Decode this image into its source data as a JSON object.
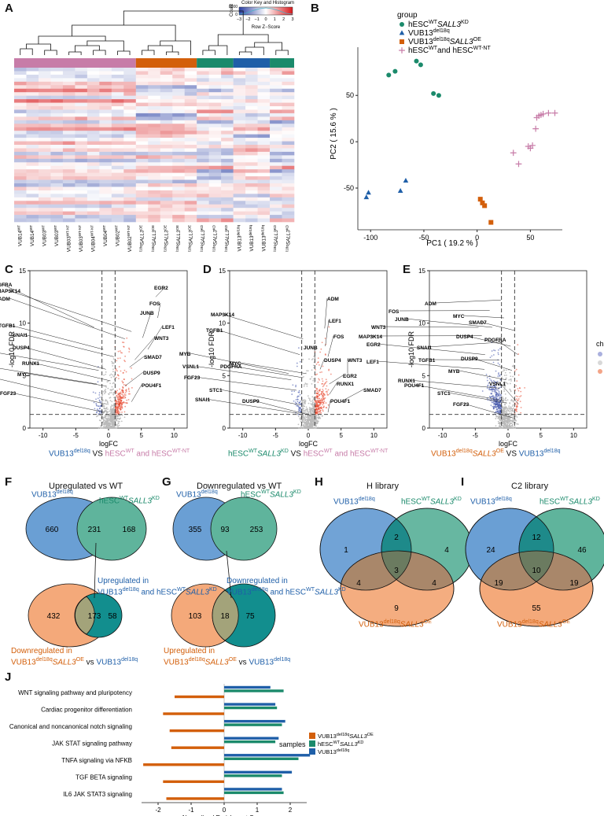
{
  "panels": {
    "A": "A",
    "B": "B",
    "C": "C",
    "D": "D",
    "E": "E",
    "F": "F",
    "G": "G",
    "H": "H",
    "I": "I",
    "J": "J"
  },
  "colors": {
    "green": "#1b8a6b",
    "blue": "#1f5fa8",
    "orange": "#d2691e",
    "pink": "#c77ca8",
    "venn_blue": "#6a9fd4",
    "venn_green": "#5fb49c",
    "venn_orange": "#f4a97a",
    "gray_overlap": "#a3a37a"
  },
  "heatmap": {
    "color_key_title": "Color Key and Histogram",
    "color_key_ylabel": "Count",
    "color_key_yticks": [
      "0",
      "8000"
    ],
    "color_key_ticks": [
      "−3",
      "−2",
      "−1",
      "0",
      "1",
      "2",
      "3"
    ],
    "color_key_xlabel": "Row Z−Score",
    "group_bar_colors": [
      "#c77ca8",
      "#d35f0b",
      "#1b8a6b",
      "#1f5fa8",
      "#1b8a6b"
    ],
    "col_labels": [
      {
        "base": "VUB14",
        "sup": "WT",
        "sub": "",
        "italic": ""
      },
      {
        "base": "VUB14",
        "sup": "WT",
        "sub": "",
        "italic": ""
      },
      {
        "base": "VUB03",
        "sup": "WT",
        "sub": "",
        "italic": ""
      },
      {
        "base": "VUB03",
        "sup": "WT",
        "sub": "",
        "italic": ""
      },
      {
        "base": "VUB03",
        "sup": "WT-NT",
        "sub": "",
        "italic": ""
      },
      {
        "base": "VUB03",
        "sup": "WT-NT",
        "sub": "",
        "italic": ""
      },
      {
        "base": "VUB04",
        "sup": "WT-NT",
        "sub": "",
        "italic": ""
      },
      {
        "base": "VUB04",
        "sup": "WT",
        "sub": "",
        "italic": ""
      },
      {
        "base": "VUB02",
        "sup": "WT",
        "sub": "",
        "italic": ""
      },
      {
        "base": "VUB02",
        "sup": "WT-NT",
        "sub": "",
        "italic": ""
      },
      {
        "base": "VUB13",
        "sup": "del18q",
        "sub": "SALL3",
        "italic": "OE"
      },
      {
        "base": "VUB13",
        "sup": "del18q",
        "sub": "SALL3",
        "italic": "OE"
      },
      {
        "base": "VUB13",
        "sup": "del18q",
        "sub": "SALL3",
        "italic": "OE"
      },
      {
        "base": "VUB13",
        "sup": "del18q",
        "sub": "SALL3",
        "italic": "OE"
      },
      {
        "base": "VUB13",
        "sup": "del18q",
        "sub": "SALL3",
        "italic": "OE"
      },
      {
        "base": "VUB03",
        "sup": "del18q",
        "sub": "SALL3",
        "italic": "KD"
      },
      {
        "base": "VUB04",
        "sup": "del18q",
        "sub": "SALL3",
        "italic": "KD"
      },
      {
        "base": "VUB04",
        "sup": "del18q",
        "sub": "SALL3",
        "italic": "KD"
      },
      {
        "base": "VUB13",
        "sup": "del18q",
        "sub": "",
        "italic": ""
      },
      {
        "base": "VUB13",
        "sup": "del18q",
        "sub": "",
        "italic": ""
      },
      {
        "base": "VUB13",
        "sup": "del18q",
        "sub": "",
        "italic": ""
      },
      {
        "base": "VUB02",
        "sup": "del18q",
        "sub": "SALL3",
        "italic": "KD"
      },
      {
        "base": "VUB02",
        "sup": "del18q",
        "sub": "SALL3",
        "italic": "KD"
      }
    ]
  },
  "pca": {
    "legend_title": "group",
    "legend": [
      {
        "shape": "circle",
        "color": "#1b8a6b",
        "label": "hESC",
        "sup": "WT",
        "italic": "SALL3",
        "tail": "KD"
      },
      {
        "shape": "triangle",
        "color": "#1f5fa8",
        "label": "VUB13",
        "sup": "del18q",
        "italic": "",
        "tail": ""
      },
      {
        "shape": "square",
        "color": "#d35f0b",
        "label": "VUB13",
        "sup": "del18q",
        "italic": "SALL3",
        "tail": "OE"
      },
      {
        "shape": "plus",
        "color": "#c77ca8",
        "label": "hESC",
        "sup": "WT",
        "italic": "",
        "tail": "and hESC",
        "sup2": "WT-NT"
      }
    ]
  },
  "chart_data": [
    {
      "type": "heatmap",
      "title": "Color Key and Histogram",
      "xlabel": "Row Z-Score",
      "color_range": [
        -3,
        3
      ],
      "columns": 23,
      "groups": [
        "hESC WT and hESC WT-NT",
        "VUB13del18q SALL3OE",
        "hESC WT SALL3KD",
        "VUB13del18q",
        "hESC WT SALL3KD"
      ]
    },
    {
      "type": "scatter",
      "xlabel": "PC1 ( 19.2 % )",
      "ylabel": "PC2 ( 15.6 % )",
      "xlim": [
        -112,
        80
      ],
      "ylim": [
        -95,
        102
      ],
      "xticks": [
        "-100",
        "-50",
        "0",
        "50"
      ],
      "yticks": [
        "50",
        "0",
        "-50"
      ],
      "series": [
        {
          "name": "hESC WT SALL3KD",
          "points": [
            [
              -83,
              72
            ],
            [
              -77,
              76
            ],
            [
              -57,
              87
            ],
            [
              -53,
              83
            ],
            [
              -41,
              52
            ],
            [
              -36,
              50
            ]
          ]
        },
        {
          "name": "VUB13del18q",
          "points": [
            [
              -104,
              -60
            ],
            [
              -102,
              -55
            ],
            [
              -72,
              -53
            ],
            [
              -67,
              -42
            ]
          ]
        },
        {
          "name": "VUB13del18q SALL3OE",
          "points": [
            [
              3,
              -62
            ],
            [
              5,
              -66
            ],
            [
              7,
              -69
            ],
            [
              13,
              -87
            ]
          ]
        },
        {
          "name": "hESC WT and hESC WT-NT",
          "points": [
            [
              34,
              -12
            ],
            [
              39,
              -24
            ],
            [
              48,
              -5
            ],
            [
              50,
              -7
            ],
            [
              52,
              -4
            ],
            [
              55,
              14
            ],
            [
              56,
              26
            ],
            [
              58,
              28
            ],
            [
              60,
              29
            ],
            [
              62,
              30
            ],
            [
              67,
              31
            ],
            [
              73,
              31
            ]
          ]
        }
      ]
    },
    {
      "type": "scatter",
      "title": "VUB13del18q vs hESC WT and hESC WT-NT",
      "xlabel": "logFC",
      "ylabel": "-log10 FDR",
      "xlim": [
        -12,
        12
      ],
      "ylim": [
        0,
        15
      ],
      "xticks": [
        "-10",
        "-5",
        "0",
        "5",
        "10"
      ],
      "yticks": [
        "0",
        "5",
        "10",
        "15"
      ],
      "labels": [
        "EGR2",
        "PDGFRA",
        "MAP3K14",
        "FOS",
        "ADM",
        "JUNB",
        "LEF1",
        "TGFB1",
        "SNAI1",
        "WNT3",
        "SMAD7",
        "MYB",
        "DUSP4",
        "RUNX1",
        "DUSP9",
        "VSNL1",
        "MYC",
        "POU4F1",
        "STC1",
        "FGF23"
      ]
    },
    {
      "type": "scatter",
      "title": "hESC WT SALL3KD vs hESC WT and hESC WT-NT",
      "xlabel": "logFC",
      "ylabel": "-log10 FDR",
      "xlim": [
        -12,
        12
      ],
      "ylim": [
        0,
        15
      ],
      "xticks": [
        "-10",
        "-5",
        "0",
        "5",
        "10"
      ],
      "yticks": [
        "0",
        "5",
        "10",
        "15"
      ],
      "labels": [
        "ADM",
        "MAP3K14",
        "LEF1",
        "TGFB1",
        "FOS",
        "JUNB",
        "MYB",
        "DUSP4",
        "WNT3",
        "MYC",
        "VSNL1",
        "PDGFRA",
        "EGR2",
        "FGF23",
        "RUNX1",
        "SMAD7",
        "STC1",
        "SNAI1",
        "DUSP9",
        "POU4F1"
      ]
    },
    {
      "type": "scatter",
      "title": "VUB13del18q SALL3OE vs VUB13del18q",
      "xlabel": "logFC",
      "ylabel": "-log10 FDR",
      "xlim": [
        -12,
        12
      ],
      "ylim": [
        0,
        15
      ],
      "xticks": [
        "-10",
        "-5",
        "0",
        "5",
        "10"
      ],
      "yticks": [
        "0",
        "5",
        "10",
        "15"
      ],
      "legend_title": "change",
      "legend": [
        "DOWN",
        "NOT",
        "UP"
      ],
      "labels": [
        "ADM",
        "FOS",
        "MYC",
        "WNT3",
        "JUNB",
        "SMAD7",
        "MAP3K14",
        "SNAI1",
        "DUSP4",
        "PDGFRA",
        "EGR2",
        "TGFB1",
        "LEF1",
        "DUSP9",
        "MYB",
        "RUNX1",
        "POU4F1",
        "STC1",
        "VSNL1",
        "FGF23"
      ]
    },
    {
      "type": "bar",
      "orientation": "horizontal",
      "xlabel": "Normalized Enrichment Score",
      "legend_title": "samples",
      "categories": [
        "WNT signaling pathway and pluripotency",
        "Cardiac progenitor differentiation",
        "Canonical and noncanonical notch signaling",
        "JAK STAT signaling pathway",
        "TNFA signaling via NFKB",
        "TGF BETA signaling",
        "IL6 JAK STAT3 signaling"
      ],
      "xlim": [
        -2.5,
        2.5
      ],
      "xticks": [
        "-2",
        "-1",
        "0",
        "1",
        "2"
      ],
      "series": [
        {
          "name": "VUB13del18q SALL3OE",
          "color": "#d35f0b",
          "values": [
            -1.5,
            -1.85,
            -1.65,
            -1.6,
            -2.45,
            -1.85,
            -1.75
          ]
        },
        {
          "name": "hESC WT SALL3KD",
          "color": "#1b8a6b",
          "values": [
            1.8,
            1.6,
            1.75,
            1.55,
            2.25,
            1.75,
            1.8
          ]
        },
        {
          "name": "VUB13del18q",
          "color": "#1f5fa8",
          "values": [
            1.4,
            1.55,
            1.85,
            1.65,
            2.6,
            2.05,
            1.75
          ]
        }
      ]
    }
  ],
  "volcano": {
    "C": {
      "ytitle": "-log10 FDR",
      "xtitle": "logFC",
      "cap_a": "VUB13",
      "cap_a_sup": "del18q",
      "cap_vs": "VS",
      "cap_b": "hESC",
      "cap_b_sup": "WT",
      "cap_and": "and hESC",
      "cap_b_sup2": "WT-NT"
    },
    "D": {
      "ytitle": "-log10 FDR",
      "xtitle": "logFC",
      "cap_a": "hESC",
      "cap_a_sup": "WT",
      "cap_a_it": "SALL3",
      "cap_a_tail": "KD",
      "cap_vs": "VS",
      "cap_b": "hESC",
      "cap_b_sup": "WT",
      "cap_and": "and hESC",
      "cap_b_sup2": "WT-NT"
    },
    "E": {
      "ytitle": "-log10 FDR",
      "xtitle": "logFC",
      "cap_a": "VUB13",
      "cap_a_sup": "del18q",
      "cap_a_it": "SALL3",
      "cap_a_tail": "OE",
      "cap_vs": "VS",
      "cap_b": "VUB13",
      "cap_b_sup": "del18q",
      "legend_title": "change",
      "legend": [
        "DOWN",
        "NOT",
        "UP"
      ]
    }
  },
  "venn": {
    "F": {
      "title": "Upregulated vs WT",
      "l1": "VUB13",
      "l1sup": "del18q",
      "r1": "hESC",
      "r1sup": "WT",
      "r1it": "SALL3",
      "r1tail": "KD",
      "a": "660",
      "ab": "231",
      "b": "168",
      "mid_label_1": "Upregulated in",
      "mid_label_2a": "VUB13",
      "mid_label_2sup": "del18q",
      "mid_label_2b": " and hESC",
      "mid_label_2sup2": "WT",
      "mid_label_2it": "SALL3",
      "mid_label_2tail": "KD",
      "c": "432",
      "cd": "173",
      "d": "58",
      "bot1": "Downregulated in",
      "bot2a": "VUB13",
      "bot2sup": "del18q",
      "bot2it": "SALL3",
      "bot2tail": "OE",
      "bot2vs": " vs ",
      "bot2b": "VUB13",
      "bot2bsup": "del18q"
    },
    "G": {
      "title": "Downregulated vs WT",
      "l1": "VUB13",
      "l1sup": "del18q",
      "r1": "hESC",
      "r1sup": "WT",
      "r1it": "SALL3",
      "r1tail": "KD",
      "a": "355",
      "ab": "93",
      "b": "253",
      "mid_label_1": "Downregulated in",
      "mid_label_2a": "VUB13",
      "mid_label_2sup": "del18q",
      "mid_label_2b": " and hESC",
      "mid_label_2sup2": "WT",
      "mid_label_2it": "SALL3",
      "mid_label_2tail": "KD",
      "c": "103",
      "cd": "18",
      "d": "75",
      "bot1": "Upregulated in",
      "bot2a": "VUB13",
      "bot2sup": "del18q",
      "bot2it": "SALL3",
      "bot2tail": "OE",
      "bot2vs": " vs ",
      "bot2b": "VUB13",
      "bot2bsup": "del18q"
    },
    "H": {
      "title": "H library",
      "l": "VUB13",
      "lsup": "del18q",
      "r": "hESC",
      "rsup": "WT",
      "rit": "SALL3",
      "rtail": "KD",
      "b": "VUB13",
      "bsup": "del18q",
      "bit": "SALL3",
      "btail": "OE",
      "a_only": "1",
      "ab": "2",
      "b_only": "4",
      "abc": "3",
      "ac": "4",
      "bc": "4",
      "c_only": "9"
    },
    "I": {
      "title": "C2 library",
      "l": "VUB13",
      "lsup": "del18q",
      "r": "hESC",
      "rsup": "WT",
      "rit": "SALL3",
      "rtail": "KD",
      "b": "VUB13",
      "bsup": "del18q",
      "bit": "SALL3",
      "btail": "OE",
      "a_only": "24",
      "ab": "12",
      "b_only": "46",
      "abc": "10",
      "ac": "19",
      "bc": "19",
      "c_only": "55"
    }
  }
}
